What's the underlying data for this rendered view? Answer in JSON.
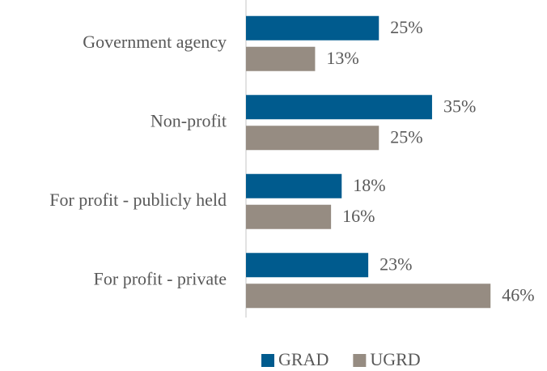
{
  "chart_data": {
    "type": "bar",
    "orientation": "horizontal",
    "categories": [
      "Government agency",
      "Non-profit",
      "For profit - publicly held",
      "For profit - private"
    ],
    "series": [
      {
        "name": "GRAD",
        "color": "#005b8e",
        "values": [
          25,
          35,
          18,
          23
        ],
        "value_labels": [
          "25%",
          "35%",
          "18%",
          "23%"
        ]
      },
      {
        "name": "UGRD",
        "color": "#968c82",
        "values": [
          13,
          25,
          16,
          46
        ],
        "value_labels": [
          "13%",
          "25%",
          "16%",
          "46%"
        ]
      }
    ],
    "xlim": [
      0,
      50
    ],
    "legend": "bottom"
  }
}
